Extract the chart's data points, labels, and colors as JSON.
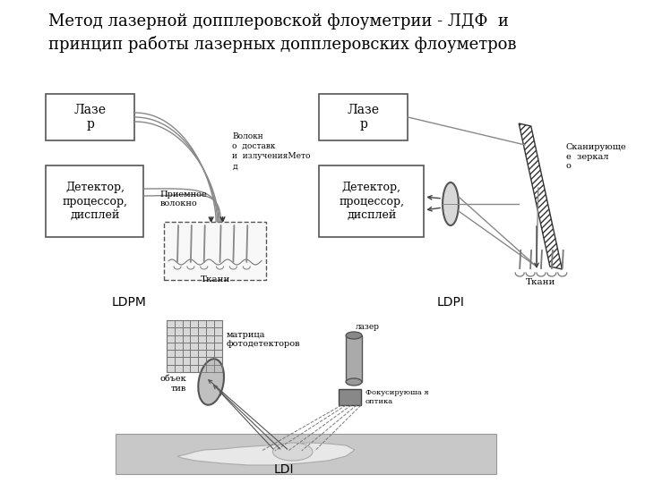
{
  "title_line1": "Метод лазерной допплеровской флоуметрии - ЛДФ  и",
  "title_line2": "принцип работы лазерных допплеровских флоуметров",
  "title_fontsize": 13,
  "bg_color": "#ffffff",
  "text_color": "#000000",
  "box_color": "#555555",
  "box_fill": "#ffffff",
  "gray_fill": "#b0b0b0",
  "label_laser1": "Лазе\nр",
  "label_detector1": "Детектор,\nпроцессор,\nдисплей",
  "label_fiber_delivery": "Волокн\nо  доставк\nи  излученияМето\nд",
  "label_receiving": "Приемное\nволокно",
  "label_tissue1": "Ткани",
  "label_laser2": "Лазе\nр",
  "label_detector2": "Детектор,\nпроцессор,\nдисплей",
  "label_scanning": "Сканирующе\nе  зеркал\nо",
  "label_tissue2": "Ткани",
  "label_LDPM": "LDPM",
  "label_LDPI": "LDPI",
  "label_LDI": "LDI",
  "label_matrix": "матрица\nфотодетекторов",
  "label_object": "объек\nтив",
  "label_laser3": "лазер",
  "label_focusing": "Фокусируюша я\nоптика"
}
